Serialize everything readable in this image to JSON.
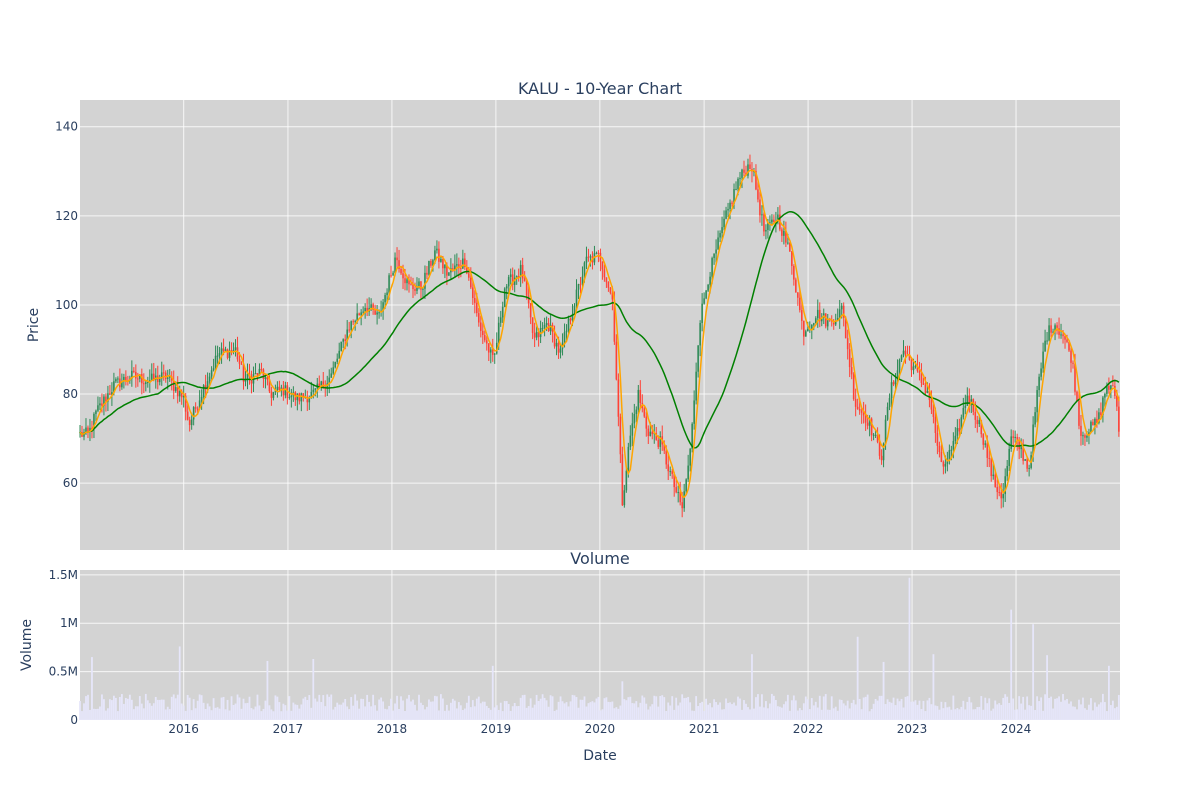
{
  "chart_data": [
    {
      "type": "candlestick",
      "title": "KALU - 10-Year Chart",
      "xlabel": "",
      "ylabel": "Price",
      "ylim": [
        45,
        146
      ],
      "yticks": [
        60,
        80,
        100,
        120,
        140
      ],
      "grid": true,
      "legend": "none",
      "colors": {
        "increasing": "#2e8b57",
        "decreasing": "#ff4136",
        "ma_fast": "#ffa500",
        "ma_slow": "#008000",
        "plot_bg": "#d3d3d3"
      },
      "x_range": [
        "2015-01-02",
        "2024-12-31"
      ],
      "close_anchors": [
        [
          "2015-01-02",
          71
        ],
        [
          "2015-02-01",
          71
        ],
        [
          "2015-03-01",
          76
        ],
        [
          "2015-05-01",
          82
        ],
        [
          "2015-07-01",
          84
        ],
        [
          "2015-09-01",
          83
        ],
        [
          "2015-11-01",
          84
        ],
        [
          "2016-01-01",
          79
        ],
        [
          "2016-01-20",
          73
        ],
        [
          "2016-03-01",
          80
        ],
        [
          "2016-05-01",
          89
        ],
        [
          "2016-07-01",
          90
        ],
        [
          "2016-08-01",
          83
        ],
        [
          "2016-10-01",
          85
        ],
        [
          "2016-11-01",
          80
        ],
        [
          "2016-12-15",
          81
        ],
        [
          "2017-02-01",
          79
        ],
        [
          "2017-04-01",
          80
        ],
        [
          "2017-06-01",
          84
        ],
        [
          "2017-08-01",
          95
        ],
        [
          "2017-10-01",
          100
        ],
        [
          "2017-11-15",
          97
        ],
        [
          "2018-01-15",
          111
        ],
        [
          "2018-03-01",
          104
        ],
        [
          "2018-04-15",
          104
        ],
        [
          "2018-06-01",
          112
        ],
        [
          "2018-07-15",
          107
        ],
        [
          "2018-09-15",
          110
        ],
        [
          "2018-11-01",
          96
        ],
        [
          "2018-12-24",
          87
        ],
        [
          "2019-02-01",
          104
        ],
        [
          "2019-04-01",
          108
        ],
        [
          "2019-05-15",
          92
        ],
        [
          "2019-07-01",
          96
        ],
        [
          "2019-08-15",
          89
        ],
        [
          "2019-10-01",
          100
        ],
        [
          "2019-11-15",
          110
        ],
        [
          "2020-01-01",
          111
        ],
        [
          "2020-02-15",
          101
        ],
        [
          "2020-03-20",
          56
        ],
        [
          "2020-04-15",
          70
        ],
        [
          "2020-05-15",
          80
        ],
        [
          "2020-06-15",
          72
        ],
        [
          "2020-08-01",
          69
        ],
        [
          "2020-09-15",
          60
        ],
        [
          "2020-10-15",
          54
        ],
        [
          "2020-11-15",
          68
        ],
        [
          "2020-12-15",
          96
        ],
        [
          "2021-01-15",
          106
        ],
        [
          "2021-03-15",
          119
        ],
        [
          "2021-05-01",
          128
        ],
        [
          "2021-06-15",
          132
        ],
        [
          "2021-08-01",
          116
        ],
        [
          "2021-09-15",
          120
        ],
        [
          "2021-11-01",
          111
        ],
        [
          "2021-12-15",
          94
        ],
        [
          "2022-02-01",
          98
        ],
        [
          "2022-03-15",
          96
        ],
        [
          "2022-05-01",
          99
        ],
        [
          "2022-06-15",
          78
        ],
        [
          "2022-08-01",
          74
        ],
        [
          "2022-09-15",
          66
        ],
        [
          "2022-10-15",
          80
        ],
        [
          "2022-12-01",
          90
        ],
        [
          "2023-01-15",
          85
        ],
        [
          "2023-03-01",
          80
        ],
        [
          "2023-04-15",
          63
        ],
        [
          "2023-06-01",
          69
        ],
        [
          "2023-07-15",
          80
        ],
        [
          "2023-09-01",
          72
        ],
        [
          "2023-10-15",
          60
        ],
        [
          "2023-11-15",
          57
        ],
        [
          "2023-12-15",
          70
        ],
        [
          "2024-01-15",
          68
        ],
        [
          "2024-02-15",
          63
        ],
        [
          "2024-03-15",
          80
        ],
        [
          "2024-04-15",
          93
        ],
        [
          "2024-05-15",
          96
        ],
        [
          "2024-06-15",
          93
        ],
        [
          "2024-07-15",
          88
        ],
        [
          "2024-08-15",
          71
        ],
        [
          "2024-09-15",
          72
        ],
        [
          "2024-10-15",
          74
        ],
        [
          "2024-11-15",
          82
        ],
        [
          "2024-12-15",
          80
        ],
        [
          "2024-12-31",
          70
        ]
      ]
    },
    {
      "type": "bar",
      "title": "Volume",
      "xlabel": "Date",
      "ylabel": "Volume",
      "ylim": [
        0,
        1550000
      ],
      "yticks": [
        0,
        500000,
        1000000,
        1500000
      ],
      "ytick_labels": [
        "0",
        "0.5M",
        "1M",
        "1.5M"
      ],
      "xticks": [
        "2016",
        "2017",
        "2018",
        "2019",
        "2020",
        "2021",
        "2022",
        "2023",
        "2024"
      ],
      "grid": true,
      "colors": {
        "bar": "#e6e6fa",
        "plot_bg": "#d3d3d3"
      },
      "volume_spikes": [
        [
          "2015-02-15",
          650000
        ],
        [
          "2015-12-20",
          760000
        ],
        [
          "2016-10-20",
          610000
        ],
        [
          "2017-04-01",
          630000
        ],
        [
          "2018-12-20",
          560000
        ],
        [
          "2020-03-20",
          400000
        ],
        [
          "2021-06-15",
          680000
        ],
        [
          "2022-06-24",
          860000
        ],
        [
          "2022-09-20",
          600000
        ],
        [
          "2022-12-20",
          1470000
        ],
        [
          "2023-03-20",
          680000
        ],
        [
          "2023-12-15",
          1140000
        ],
        [
          "2024-03-01",
          990000
        ],
        [
          "2024-04-20",
          670000
        ],
        [
          "2024-11-20",
          560000
        ]
      ]
    }
  ]
}
